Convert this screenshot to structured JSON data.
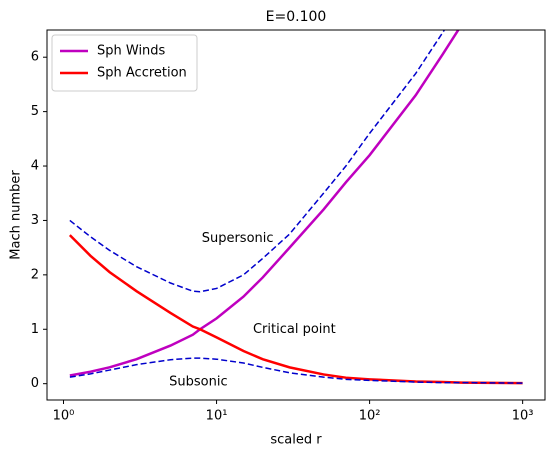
{
  "chart_data": {
    "type": "line",
    "title": "E=0.100",
    "xlabel": "scaled r",
    "ylabel": "Mach number",
    "xscale": "log",
    "xlim": [
      0.78,
      1400
    ],
    "ylim": [
      -0.3,
      6.5
    ],
    "xticks": [
      {
        "value": 1,
        "label": "10⁰"
      },
      {
        "value": 10,
        "label": "10¹"
      },
      {
        "value": 100,
        "label": "10²"
      },
      {
        "value": 1000,
        "label": "10³"
      }
    ],
    "yticks": [
      0,
      1,
      2,
      3,
      4,
      5,
      6
    ],
    "legend": "upper left",
    "x": [
      1.1,
      1.5,
      2,
      3,
      5,
      7,
      7.8,
      10,
      15,
      20,
      30,
      50,
      70,
      100,
      200,
      300,
      400,
      1000
    ],
    "series": [
      {
        "name": "Sph Winds",
        "color": "#bf00bf",
        "width": 2.5,
        "values": [
          0.15,
          0.22,
          0.3,
          0.45,
          0.7,
          0.9,
          1.0,
          1.2,
          1.6,
          1.95,
          2.5,
          3.2,
          3.7,
          4.2,
          5.3,
          6.05,
          6.6,
          null
        ]
      },
      {
        "name": "Sph Accretion",
        "color": "#ff0000",
        "width": 2.5,
        "values": [
          2.73,
          2.35,
          2.05,
          1.7,
          1.3,
          1.05,
          1.0,
          0.85,
          0.6,
          0.45,
          0.3,
          0.17,
          0.11,
          0.08,
          0.04,
          0.03,
          0.02,
          0.01
        ]
      },
      {
        "color": "#0000cc",
        "width": 1.5,
        "dashed": true,
        "values": [
          3.0,
          2.7,
          2.45,
          2.15,
          1.85,
          1.7,
          1.69,
          1.75,
          2.0,
          2.3,
          2.75,
          3.5,
          4.0,
          4.6,
          5.7,
          6.45,
          7.0,
          null
        ]
      },
      {
        "color": "#0000cc",
        "width": 1.5,
        "dashed": true,
        "values": [
          0.12,
          0.18,
          0.25,
          0.35,
          0.44,
          0.47,
          0.47,
          0.45,
          0.38,
          0.3,
          0.2,
          0.12,
          0.08,
          0.06,
          0.03,
          0.02,
          0.02,
          0.01
        ]
      }
    ],
    "annotations": [
      {
        "text": "Supersonic",
        "x": 8.0,
        "y": 2.67
      },
      {
        "text": "Critical point",
        "x": 17.3,
        "y": 1.0
      },
      {
        "text": "Subsonic",
        "x": 4.9,
        "y": 0.03
      }
    ]
  }
}
